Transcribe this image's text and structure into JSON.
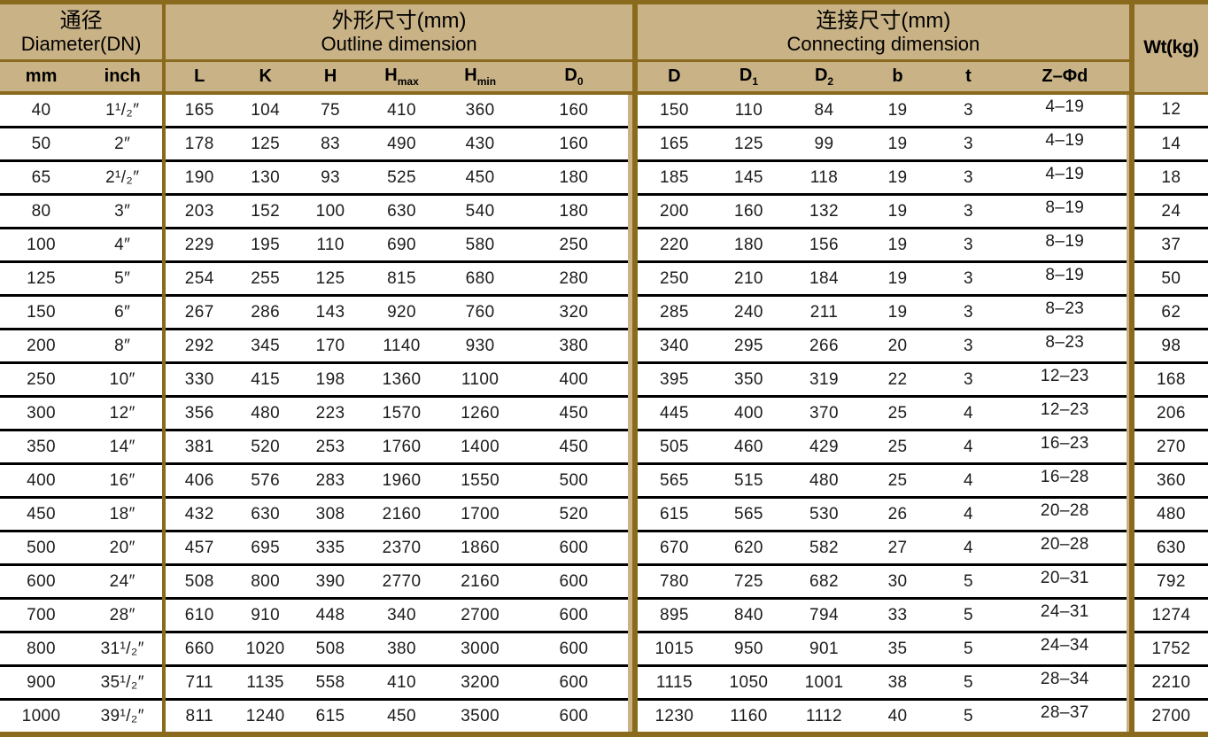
{
  "header": {
    "groups": [
      {
        "zh": "通径",
        "en": "Diameter(DN)"
      },
      {
        "zh": "外形尺寸(mm)",
        "en": "Outline dimension"
      },
      {
        "zh": "连接尺寸(mm)",
        "en": "Connecting dimension"
      }
    ],
    "weight_label": "Wt(kg)",
    "columns": [
      {
        "base": "mm"
      },
      {
        "base": "inch"
      },
      {
        "base": "L"
      },
      {
        "base": "K"
      },
      {
        "base": "H"
      },
      {
        "base": "H",
        "sub": "max"
      },
      {
        "base": "H",
        "sub": "min"
      },
      {
        "base": "D",
        "sub": "0"
      },
      {
        "base": "D"
      },
      {
        "base": "D",
        "sub": "1"
      },
      {
        "base": "D",
        "sub": "2"
      },
      {
        "base": "b"
      },
      {
        "base": "t"
      },
      {
        "base": "Z–Φd"
      }
    ]
  },
  "rows": [
    [
      "40",
      "1¹/₂″",
      "165",
      "104",
      "75",
      "410",
      "360",
      "160",
      "150",
      "110",
      "84",
      "19",
      "3",
      "4–19",
      "12"
    ],
    [
      "50",
      "2″",
      "178",
      "125",
      "83",
      "490",
      "430",
      "160",
      "165",
      "125",
      "99",
      "19",
      "3",
      "4–19",
      "14"
    ],
    [
      "65",
      "2¹/₂″",
      "190",
      "130",
      "93",
      "525",
      "450",
      "180",
      "185",
      "145",
      "118",
      "19",
      "3",
      "4–19",
      "18"
    ],
    [
      "80",
      "3″",
      "203",
      "152",
      "100",
      "630",
      "540",
      "180",
      "200",
      "160",
      "132",
      "19",
      "3",
      "8–19",
      "24"
    ],
    [
      "100",
      "4″",
      "229",
      "195",
      "110",
      "690",
      "580",
      "250",
      "220",
      "180",
      "156",
      "19",
      "3",
      "8–19",
      "37"
    ],
    [
      "125",
      "5″",
      "254",
      "255",
      "125",
      "815",
      "680",
      "280",
      "250",
      "210",
      "184",
      "19",
      "3",
      "8–19",
      "50"
    ],
    [
      "150",
      "6″",
      "267",
      "286",
      "143",
      "920",
      "760",
      "320",
      "285",
      "240",
      "211",
      "19",
      "3",
      "8–23",
      "62"
    ],
    [
      "200",
      "8″",
      "292",
      "345",
      "170",
      "1140",
      "930",
      "380",
      "340",
      "295",
      "266",
      "20",
      "3",
      "8–23",
      "98"
    ],
    [
      "250",
      "10″",
      "330",
      "415",
      "198",
      "1360",
      "1100",
      "400",
      "395",
      "350",
      "319",
      "22",
      "3",
      "12–23",
      "168"
    ],
    [
      "300",
      "12″",
      "356",
      "480",
      "223",
      "1570",
      "1260",
      "450",
      "445",
      "400",
      "370",
      "25",
      "4",
      "12–23",
      "206"
    ],
    [
      "350",
      "14″",
      "381",
      "520",
      "253",
      "1760",
      "1400",
      "450",
      "505",
      "460",
      "429",
      "25",
      "4",
      "16–23",
      "270"
    ],
    [
      "400",
      "16″",
      "406",
      "576",
      "283",
      "1960",
      "1550",
      "500",
      "565",
      "515",
      "480",
      "25",
      "4",
      "16–28",
      "360"
    ],
    [
      "450",
      "18″",
      "432",
      "630",
      "308",
      "2160",
      "1700",
      "520",
      "615",
      "565",
      "530",
      "26",
      "4",
      "20–28",
      "480"
    ],
    [
      "500",
      "20″",
      "457",
      "695",
      "335",
      "2370",
      "1860",
      "600",
      "670",
      "620",
      "582",
      "27",
      "4",
      "20–28",
      "630"
    ],
    [
      "600",
      "24″",
      "508",
      "800",
      "390",
      "2770",
      "2160",
      "600",
      "780",
      "725",
      "682",
      "30",
      "5",
      "20–31",
      "792"
    ],
    [
      "700",
      "28″",
      "610",
      "910",
      "448",
      "340",
      "2700",
      "600",
      "895",
      "840",
      "794",
      "33",
      "5",
      "24–31",
      "1274"
    ],
    [
      "800",
      "31¹/₂″",
      "660",
      "1020",
      "508",
      "380",
      "3000",
      "600",
      "1015",
      "950",
      "901",
      "35",
      "5",
      "24–34",
      "1752"
    ],
    [
      "900",
      "35¹/₂″",
      "711",
      "1135",
      "558",
      "410",
      "3200",
      "600",
      "1115",
      "1050",
      "1001",
      "38",
      "5",
      "28–34",
      "2210"
    ],
    [
      "1000",
      "39¹/₂″",
      "811",
      "1240",
      "615",
      "450",
      "3500",
      "600",
      "1230",
      "1160",
      "1112",
      "40",
      "5",
      "28–37",
      "2700"
    ]
  ],
  "colors": {
    "header_background": "#c9b286",
    "section_border": "#8a6a1d",
    "row_line": "#000000",
    "data_background": "#ffffff"
  }
}
